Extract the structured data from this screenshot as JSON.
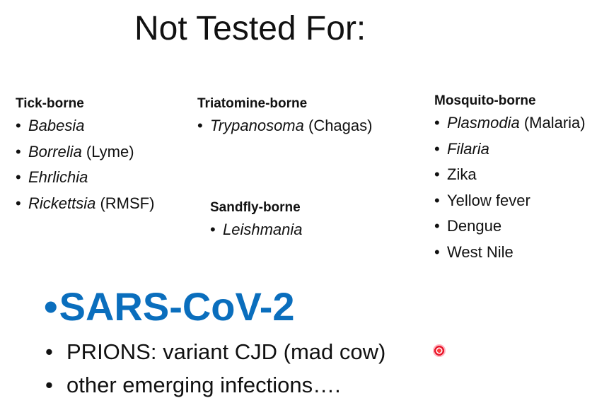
{
  "title": "Not Tested For:",
  "groups": {
    "tick": {
      "heading": "Tick-borne",
      "items": [
        {
          "italic": "Babesia",
          "rest": ""
        },
        {
          "italic": "Borrelia",
          "rest": " (Lyme)"
        },
        {
          "italic": "Ehrlichia",
          "rest": ""
        },
        {
          "italic": "Rickettsia",
          "rest": " (RMSF)"
        }
      ]
    },
    "triatomine": {
      "heading": "Triatomine-borne",
      "items": [
        {
          "italic": "Trypanosoma",
          "rest": " (Chagas)"
        }
      ]
    },
    "sandfly": {
      "heading": "Sandfly-borne",
      "items": [
        {
          "italic": "Leishmania",
          "rest": ""
        }
      ]
    },
    "mosquito": {
      "heading": "Mosquito-borne",
      "items": [
        {
          "italic": "Plasmodia",
          "rest": " (Malaria)"
        },
        {
          "italic": "Filaria",
          "rest": ""
        },
        {
          "italic": "",
          "rest": "Zika"
        },
        {
          "italic": "",
          "rest": "Yellow fever"
        },
        {
          "italic": "",
          "rest": "Dengue"
        },
        {
          "italic": "",
          "rest": "West Nile"
        }
      ]
    }
  },
  "highlight": {
    "bullet": "•",
    "text": "SARS-CoV-2",
    "color": "#0a6ebd"
  },
  "bottom_items": [
    "PRIONS: variant CJD (mad cow)",
    "other emerging infections…."
  ],
  "pointer": {
    "icon": "laser-pointer-icon",
    "color": "#e8172c"
  }
}
